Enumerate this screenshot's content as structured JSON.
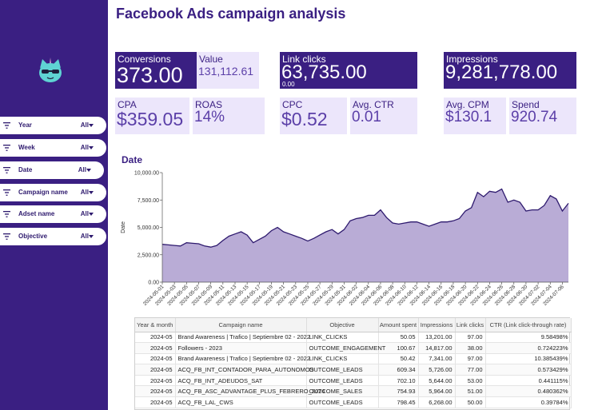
{
  "page": {
    "title": "Facebook Ads campaign analysis"
  },
  "logo": {
    "icon": "cat-logo-icon"
  },
  "filters": [
    {
      "label": "Year",
      "value": "All"
    },
    {
      "label": "Week",
      "value": "All"
    },
    {
      "label": "Date",
      "value": "All"
    },
    {
      "label": "Campaign name",
      "value": "All"
    },
    {
      "label": "Adset name",
      "value": "All"
    },
    {
      "label": "Objective",
      "value": "All"
    }
  ],
  "cards": {
    "conversions": {
      "label": "Conversions",
      "value": "373.00"
    },
    "value": {
      "label": "Value",
      "value": "131,112.61"
    },
    "link_clicks": {
      "label": "Link clicks",
      "value": "63,735.00",
      "sub": "0.00"
    },
    "impressions": {
      "label": "Impressions",
      "value": "9,281,778.00"
    },
    "cpa": {
      "label": "CPA",
      "value": "$359.05"
    },
    "roas": {
      "label": "ROAS",
      "value": "14%"
    },
    "cpc": {
      "label": "CPC",
      "value": "$0.52"
    },
    "ctr": {
      "label": "Avg. CTR",
      "value": "0.01"
    },
    "cpm": {
      "label": "Avg. CPM",
      "value": "$130.1"
    },
    "spend": {
      "label": "Spend",
      "value": "920.74"
    }
  },
  "chart_data": {
    "type": "area",
    "title": "Date",
    "xlabel": "",
    "ylabel": "Date",
    "ylim": [
      0,
      10000
    ],
    "yticks": [
      "0.00",
      "2,500.00",
      "5,000.00",
      "7,500.00",
      "10,000.00"
    ],
    "grid": false,
    "color": "#b9acd6",
    "line_color": "#2e1a6e",
    "x": [
      "2024-05-01",
      "2024-05-02",
      "2024-05-03",
      "2024-05-04",
      "2024-05-05",
      "2024-05-06",
      "2024-05-07",
      "2024-05-08",
      "2024-05-09",
      "2024-05-10",
      "2024-05-11",
      "2024-05-12",
      "2024-05-13",
      "2024-05-14",
      "2024-05-15",
      "2024-05-16",
      "2024-05-17",
      "2024-05-18",
      "2024-05-19",
      "2024-05-20",
      "2024-05-21",
      "2024-05-22",
      "2024-05-23",
      "2024-05-24",
      "2024-05-25",
      "2024-05-26",
      "2024-05-27",
      "2024-05-28",
      "2024-05-29",
      "2024-05-30",
      "2024-05-31",
      "2024-06-01",
      "2024-06-02",
      "2024-06-03",
      "2024-06-04",
      "2024-06-05",
      "2024-06-06",
      "2024-06-07",
      "2024-06-08",
      "2024-06-09",
      "2024-06-10",
      "2024-06-11",
      "2024-06-12",
      "2024-06-13",
      "2024-06-14",
      "2024-06-15",
      "2024-06-16",
      "2024-06-17",
      "2024-06-18",
      "2024-06-19",
      "2024-06-20",
      "2024-06-21",
      "2024-06-22",
      "2024-06-23",
      "2024-06-24",
      "2024-06-25",
      "2024-06-26",
      "2024-06-27",
      "2024-06-28",
      "2024-06-29",
      "2024-06-30",
      "2024-07-01",
      "2024-07-02",
      "2024-07-03",
      "2024-07-04",
      "2024-07-05",
      "2024-07-06",
      "2024-07-07"
    ],
    "xticks": [
      "2024-05-01",
      "2024-05-03",
      "2024-05-05",
      "2024-05-07",
      "2024-05-09",
      "2024-05-11",
      "2024-05-13",
      "2024-05-15",
      "2024-05-17",
      "2024-05-19",
      "2024-05-21",
      "2024-05-23",
      "2024-05-25",
      "2024-05-27",
      "2024-05-29",
      "2024-05-31",
      "2024-06-02",
      "2024-06-04",
      "2024-06-06",
      "2024-06-08",
      "2024-06-10",
      "2024-06-12",
      "2024-06-14",
      "2024-06-16",
      "2024-06-18",
      "2024-06-20",
      "2024-06-22",
      "2024-06-24",
      "2024-06-26",
      "2024-06-28",
      "2024-06-30",
      "2024-07-02",
      "2024-07-04",
      "2024-07-06"
    ],
    "values": [
      3450,
      3400,
      3350,
      3300,
      3600,
      3550,
      3500,
      3300,
      3200,
      3350,
      3800,
      4200,
      4400,
      4600,
      4300,
      3600,
      3900,
      4200,
      4700,
      5000,
      4600,
      4400,
      4200,
      4000,
      3750,
      4000,
      4300,
      4600,
      4800,
      4400,
      4800,
      5600,
      5800,
      5900,
      6100,
      6100,
      6600,
      5900,
      5400,
      5300,
      5400,
      5500,
      5500,
      5300,
      5100,
      5300,
      5500,
      5500,
      5600,
      5800,
      6500,
      6800,
      8200,
      7800,
      8300,
      8200,
      8500,
      7300,
      7500,
      7300,
      6500,
      6600,
      6600,
      7000,
      7900,
      7600,
      6500,
      7200
    ]
  },
  "table": {
    "columns": [
      "Year & month",
      "Campaign name",
      "Objective",
      "Amount spent",
      "Impressions",
      "Link clicks",
      "CTR (Link click-through rate)"
    ],
    "rows": [
      [
        "2024-05",
        "Brand Awareness | Trafico | Septiembre 02 - 2022",
        "LINK_CLICKS",
        "50.05",
        "13,201.00",
        "97.00",
        "9.58498%"
      ],
      [
        "2024-05",
        "Followers - 2023",
        "OUTCOME_ENGAGEMENT",
        "100.67",
        "14,817.00",
        "38.00",
        "0.724223%"
      ],
      [
        "2024-05",
        "Brand Awareness | Trafico | Septiembre 02 - 2022",
        "LINK_CLICKS",
        "50.42",
        "7,341.00",
        "97.00",
        "10.385439%"
      ],
      [
        "2024-05",
        "ACQ_FB_INT_CONTADOR_PARA_AUTONOMOS",
        "OUTCOME_LEADS",
        "609.34",
        "5,726.00",
        "77.00",
        "0.573429%"
      ],
      [
        "2024-05",
        "ACQ_FB_INT_ADEUDOS_SAT",
        "OUTCOME_LEADS",
        "702.10",
        "5,644.00",
        "53.00",
        "0.441115%"
      ],
      [
        "2024-05",
        "ACQ_FB_ASC_ADVANTAGE_PLUS_FEBRERO_2024",
        "OUTCOME_SALES",
        "754.93",
        "5,964.00",
        "51.00",
        "0.480362%"
      ],
      [
        "2024-05",
        "ACQ_FB_LAL_CWS",
        "OUTCOME_LEADS",
        "798.45",
        "6,268.00",
        "50.00",
        "0.39784%"
      ]
    ]
  }
}
